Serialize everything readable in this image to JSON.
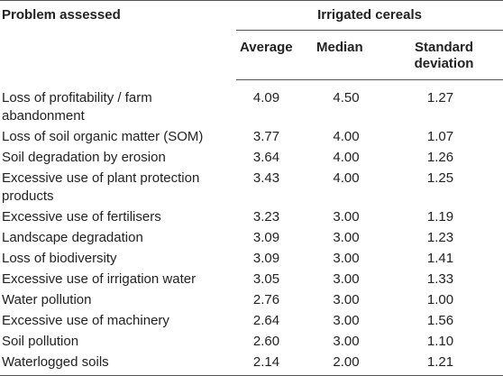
{
  "table": {
    "header": {
      "problem_label": "Problem assessed",
      "group_label": "Irrigated cereals",
      "average_label": "Average",
      "median_label": "Median",
      "sd_label": "Standard deviation"
    },
    "rows": [
      {
        "problem": "Loss of profitability / farm abandonment",
        "average": "4.09",
        "median": "4.50",
        "sd": "1.27"
      },
      {
        "problem": "Loss of soil organic matter (SOM)",
        "average": "3.77",
        "median": "4.00",
        "sd": "1.07"
      },
      {
        "problem": "Soil degradation by erosion",
        "average": "3.64",
        "median": "4.00",
        "sd": "1.26"
      },
      {
        "problem": "Excessive use of plant protection products",
        "average": "3.43",
        "median": "4.00",
        "sd": "1.25"
      },
      {
        "problem": "Excessive use of fertilisers",
        "average": "3.23",
        "median": "3.00",
        "sd": "1.19"
      },
      {
        "problem": "Landscape degradation",
        "average": "3.09",
        "median": "3.00",
        "sd": "1.23"
      },
      {
        "problem": "Loss of biodiversity",
        "average": "3.09",
        "median": "3.00",
        "sd": "1.41"
      },
      {
        "problem": "Excessive use of irrigation water",
        "average": "3.05",
        "median": "3.00",
        "sd": "1.33"
      },
      {
        "problem": "Water pollution",
        "average": "2.76",
        "median": "3.00",
        "sd": "1.00"
      },
      {
        "problem": "Excessive use of machinery",
        "average": "2.64",
        "median": "3.00",
        "sd": "1.56"
      },
      {
        "problem": "Soil pollution",
        "average": "2.60",
        "median": "3.00",
        "sd": "1.10"
      },
      {
        "problem": "Waterlogged soils",
        "average": "2.14",
        "median": "2.00",
        "sd": "1.21"
      }
    ]
  }
}
